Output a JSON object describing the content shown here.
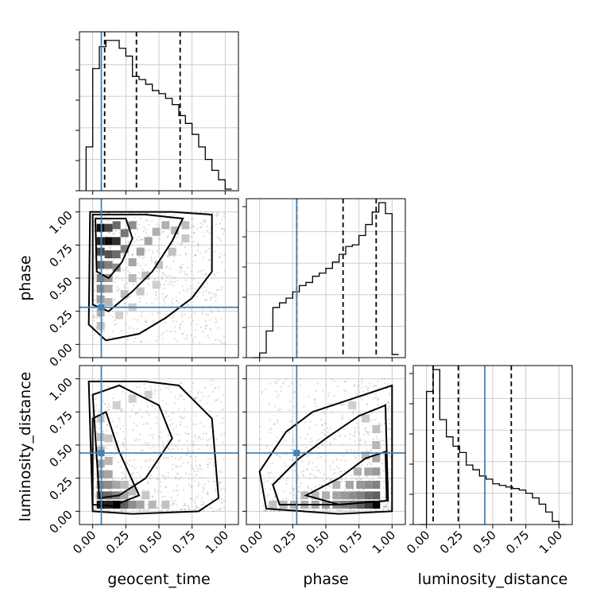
{
  "chart_data": {
    "type": "corner",
    "parameters": [
      "geocent_time",
      "phase",
      "luminosity_distance"
    ],
    "axis_range": [
      -0.1,
      1.1
    ],
    "tick_labels": [
      "0.00",
      "0.25",
      "0.50",
      "0.75",
      "1.00"
    ],
    "tick_values": [
      0,
      0.25,
      0.5,
      0.75,
      1.0
    ],
    "truths": {
      "geocent_time": 0.065,
      "phase": 0.28,
      "luminosity_distance": 0.44
    },
    "truth_color": "#4682b4",
    "quantiles": {
      "geocent_time": [
        0.09,
        0.33,
        0.66
      ],
      "phase": [
        0.28,
        0.63,
        0.88
      ],
      "luminosity_distance": [
        0.05,
        0.24,
        0.64
      ]
    },
    "histograms": {
      "geocent_time": {
        "bin_edges": [
          -0.05,
          0.0,
          0.05,
          0.1,
          0.15,
          0.2,
          0.25,
          0.3,
          0.35,
          0.4,
          0.45,
          0.5,
          0.55,
          0.6,
          0.65,
          0.7,
          0.75,
          0.8,
          0.85,
          0.9,
          0.95,
          1.0,
          1.05
        ],
        "counts": [
          0.28,
          0.78,
          0.92,
          0.96,
          0.96,
          0.91,
          0.86,
          0.73,
          0.71,
          0.68,
          0.64,
          0.62,
          0.59,
          0.55,
          0.48,
          0.43,
          0.36,
          0.28,
          0.2,
          0.13,
          0.07,
          0.01
        ]
      },
      "phase": {
        "bin_edges": [
          -0.05,
          0.0,
          0.05,
          0.1,
          0.15,
          0.2,
          0.25,
          0.3,
          0.35,
          0.4,
          0.45,
          0.5,
          0.55,
          0.6,
          0.65,
          0.7,
          0.75,
          0.8,
          0.85,
          0.9,
          0.95,
          1.0,
          1.05
        ],
        "counts": [
          0.0,
          0.03,
          0.17,
          0.32,
          0.35,
          0.38,
          0.42,
          0.46,
          0.48,
          0.52,
          0.54,
          0.57,
          0.61,
          0.66,
          0.71,
          0.72,
          0.78,
          0.85,
          0.93,
          0.99,
          0.92,
          0.02
        ]
      },
      "luminosity_distance": {
        "bin_edges": [
          -0.05,
          0.0,
          0.05,
          0.1,
          0.15,
          0.2,
          0.25,
          0.3,
          0.35,
          0.4,
          0.45,
          0.5,
          0.55,
          0.6,
          0.65,
          0.7,
          0.75,
          0.8,
          0.85,
          0.9,
          0.95,
          1.0,
          1.05
        ],
        "counts": [
          0.0,
          0.85,
          0.99,
          0.67,
          0.56,
          0.5,
          0.46,
          0.38,
          0.35,
          0.31,
          0.29,
          0.26,
          0.25,
          0.24,
          0.23,
          0.22,
          0.2,
          0.17,
          0.13,
          0.08,
          0.02,
          0.0
        ]
      }
    },
    "density_2d": {
      "phase_vs_geocent_time": {
        "cells": [
          [
            0.06,
            0.88,
            0.95
          ],
          [
            0.12,
            0.88,
            0.7
          ],
          [
            0.18,
            0.9,
            0.55
          ],
          [
            0.06,
            0.78,
            0.85
          ],
          [
            0.12,
            0.78,
            0.95
          ],
          [
            0.18,
            0.78,
            0.8
          ],
          [
            0.24,
            0.84,
            0.5
          ],
          [
            0.3,
            0.9,
            0.4
          ],
          [
            0.06,
            0.7,
            0.7
          ],
          [
            0.12,
            0.68,
            0.65
          ],
          [
            0.18,
            0.68,
            0.55
          ],
          [
            0.24,
            0.72,
            0.45
          ],
          [
            0.06,
            0.6,
            0.6
          ],
          [
            0.12,
            0.6,
            0.45
          ],
          [
            0.18,
            0.58,
            0.4
          ],
          [
            0.06,
            0.5,
            0.45
          ],
          [
            0.12,
            0.5,
            0.35
          ],
          [
            0.06,
            0.42,
            0.4
          ],
          [
            0.12,
            0.42,
            0.28
          ],
          [
            0.06,
            0.34,
            0.32
          ],
          [
            0.12,
            0.32,
            0.22
          ],
          [
            0.06,
            0.24,
            0.25
          ],
          [
            0.06,
            0.14,
            0.18
          ],
          [
            0.3,
            0.62,
            0.3
          ],
          [
            0.36,
            0.7,
            0.3
          ],
          [
            0.42,
            0.78,
            0.3
          ],
          [
            0.48,
            0.85,
            0.25
          ],
          [
            0.55,
            0.9,
            0.25
          ],
          [
            0.62,
            0.86,
            0.22
          ],
          [
            0.7,
            0.9,
            0.2
          ],
          [
            0.3,
            0.5,
            0.22
          ],
          [
            0.4,
            0.52,
            0.2
          ],
          [
            0.5,
            0.6,
            0.18
          ],
          [
            0.6,
            0.7,
            0.18
          ],
          [
            0.7,
            0.8,
            0.15
          ],
          [
            0.24,
            0.38,
            0.18
          ],
          [
            0.36,
            0.4,
            0.15
          ],
          [
            0.48,
            0.45,
            0.12
          ],
          [
            0.2,
            0.22,
            0.12
          ],
          [
            0.3,
            0.28,
            0.12
          ]
        ],
        "contour_levels": [
          "inner",
          "middle",
          "outer"
        ]
      },
      "luminosity_distance_vs_geocent_time": {
        "cells": [
          [
            0.06,
            0.05,
            0.9
          ],
          [
            0.12,
            0.05,
            0.85
          ],
          [
            0.18,
            0.05,
            1.0
          ],
          [
            0.24,
            0.05,
            0.6
          ],
          [
            0.3,
            0.05,
            0.4
          ],
          [
            0.06,
            0.12,
            0.6
          ],
          [
            0.12,
            0.12,
            0.55
          ],
          [
            0.18,
            0.12,
            0.45
          ],
          [
            0.24,
            0.12,
            0.3
          ],
          [
            0.06,
            0.2,
            0.45
          ],
          [
            0.12,
            0.2,
            0.4
          ],
          [
            0.18,
            0.2,
            0.3
          ],
          [
            0.06,
            0.28,
            0.35
          ],
          [
            0.12,
            0.28,
            0.3
          ],
          [
            0.06,
            0.36,
            0.28
          ],
          [
            0.12,
            0.38,
            0.22
          ],
          [
            0.06,
            0.46,
            0.22
          ],
          [
            0.06,
            0.56,
            0.18
          ],
          [
            0.12,
            0.55,
            0.15
          ],
          [
            0.36,
            0.05,
            0.3
          ],
          [
            0.45,
            0.05,
            0.22
          ],
          [
            0.55,
            0.05,
            0.18
          ],
          [
            0.24,
            0.2,
            0.2
          ],
          [
            0.3,
            0.15,
            0.2
          ],
          [
            0.4,
            0.12,
            0.15
          ],
          [
            0.06,
            0.7,
            0.14
          ],
          [
            0.18,
            0.8,
            0.12
          ],
          [
            0.3,
            0.85,
            0.12
          ],
          [
            0.42,
            0.88,
            0.12
          ]
        ],
        "contour_levels": [
          "inner",
          "middle",
          "outer"
        ]
      },
      "luminosity_distance_vs_phase": {
        "cells": [
          [
            0.88,
            0.05,
            1.0
          ],
          [
            0.82,
            0.05,
            0.75
          ],
          [
            0.76,
            0.05,
            0.6
          ],
          [
            0.7,
            0.05,
            0.5
          ],
          [
            0.64,
            0.05,
            0.45
          ],
          [
            0.58,
            0.05,
            0.4
          ],
          [
            0.5,
            0.05,
            0.35
          ],
          [
            0.42,
            0.05,
            0.3
          ],
          [
            0.34,
            0.05,
            0.28
          ],
          [
            0.26,
            0.05,
            0.25
          ],
          [
            0.18,
            0.05,
            0.22
          ],
          [
            0.1,
            0.05,
            0.18
          ],
          [
            0.88,
            0.12,
            0.6
          ],
          [
            0.82,
            0.12,
            0.55
          ],
          [
            0.76,
            0.12,
            0.45
          ],
          [
            0.7,
            0.12,
            0.4
          ],
          [
            0.64,
            0.12,
            0.35
          ],
          [
            0.58,
            0.12,
            0.3
          ],
          [
            0.5,
            0.12,
            0.25
          ],
          [
            0.42,
            0.12,
            0.22
          ],
          [
            0.34,
            0.12,
            0.2
          ],
          [
            0.88,
            0.2,
            0.45
          ],
          [
            0.82,
            0.2,
            0.4
          ],
          [
            0.76,
            0.2,
            0.35
          ],
          [
            0.68,
            0.2,
            0.3
          ],
          [
            0.58,
            0.2,
            0.22
          ],
          [
            0.88,
            0.3,
            0.35
          ],
          [
            0.82,
            0.3,
            0.3
          ],
          [
            0.74,
            0.3,
            0.25
          ],
          [
            0.88,
            0.4,
            0.28
          ],
          [
            0.8,
            0.42,
            0.2
          ],
          [
            0.88,
            0.5,
            0.22
          ],
          [
            0.88,
            0.62,
            0.18
          ],
          [
            0.8,
            0.7,
            0.14
          ],
          [
            0.7,
            0.8,
            0.12
          ]
        ],
        "contour_levels": [
          "inner",
          "middle",
          "outer"
        ]
      }
    }
  }
}
